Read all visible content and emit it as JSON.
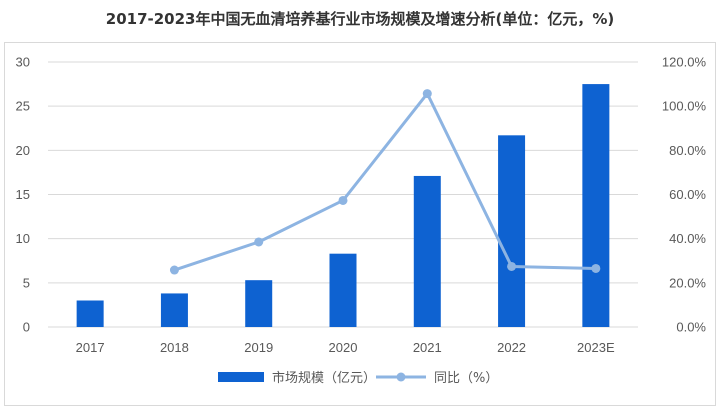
{
  "title": "2017-2023年中国无血清培养基行业市场规模及增速分析(单位：亿元，%)",
  "colors": {
    "bar": "#0E62D1",
    "line": "#8DB4E2",
    "grid": "#D9D9D9",
    "text": "#595959"
  },
  "chart_data": {
    "type": "bar",
    "title": "2017-2023年中国无血清培养基行业市场规模及增速分析(单位：亿元，%)",
    "categories": [
      "2017",
      "2018",
      "2019",
      "2020",
      "2021",
      "2022",
      "2023E"
    ],
    "series": [
      {
        "name": "市场规模（亿元）",
        "type": "bar",
        "axis": "left",
        "values": [
          3.0,
          3.8,
          5.3,
          8.3,
          17.1,
          21.7,
          27.5
        ]
      },
      {
        "name": "同比（%）",
        "type": "line",
        "axis": "right",
        "values": [
          null,
          25.8,
          38.5,
          57.3,
          105.7,
          27.4,
          26.5
        ]
      }
    ],
    "y_left": {
      "ylim": [
        0,
        30
      ],
      "ticks": [
        "0",
        "5",
        "10",
        "15",
        "20",
        "25",
        "30"
      ]
    },
    "y_right": {
      "ylim": [
        0,
        120
      ],
      "ticks": [
        "0.0%",
        "20.0%",
        "40.0%",
        "60.0%",
        "80.0%",
        "100.0%",
        "120.0%"
      ]
    },
    "grid": true,
    "legend_position": "bottom"
  }
}
